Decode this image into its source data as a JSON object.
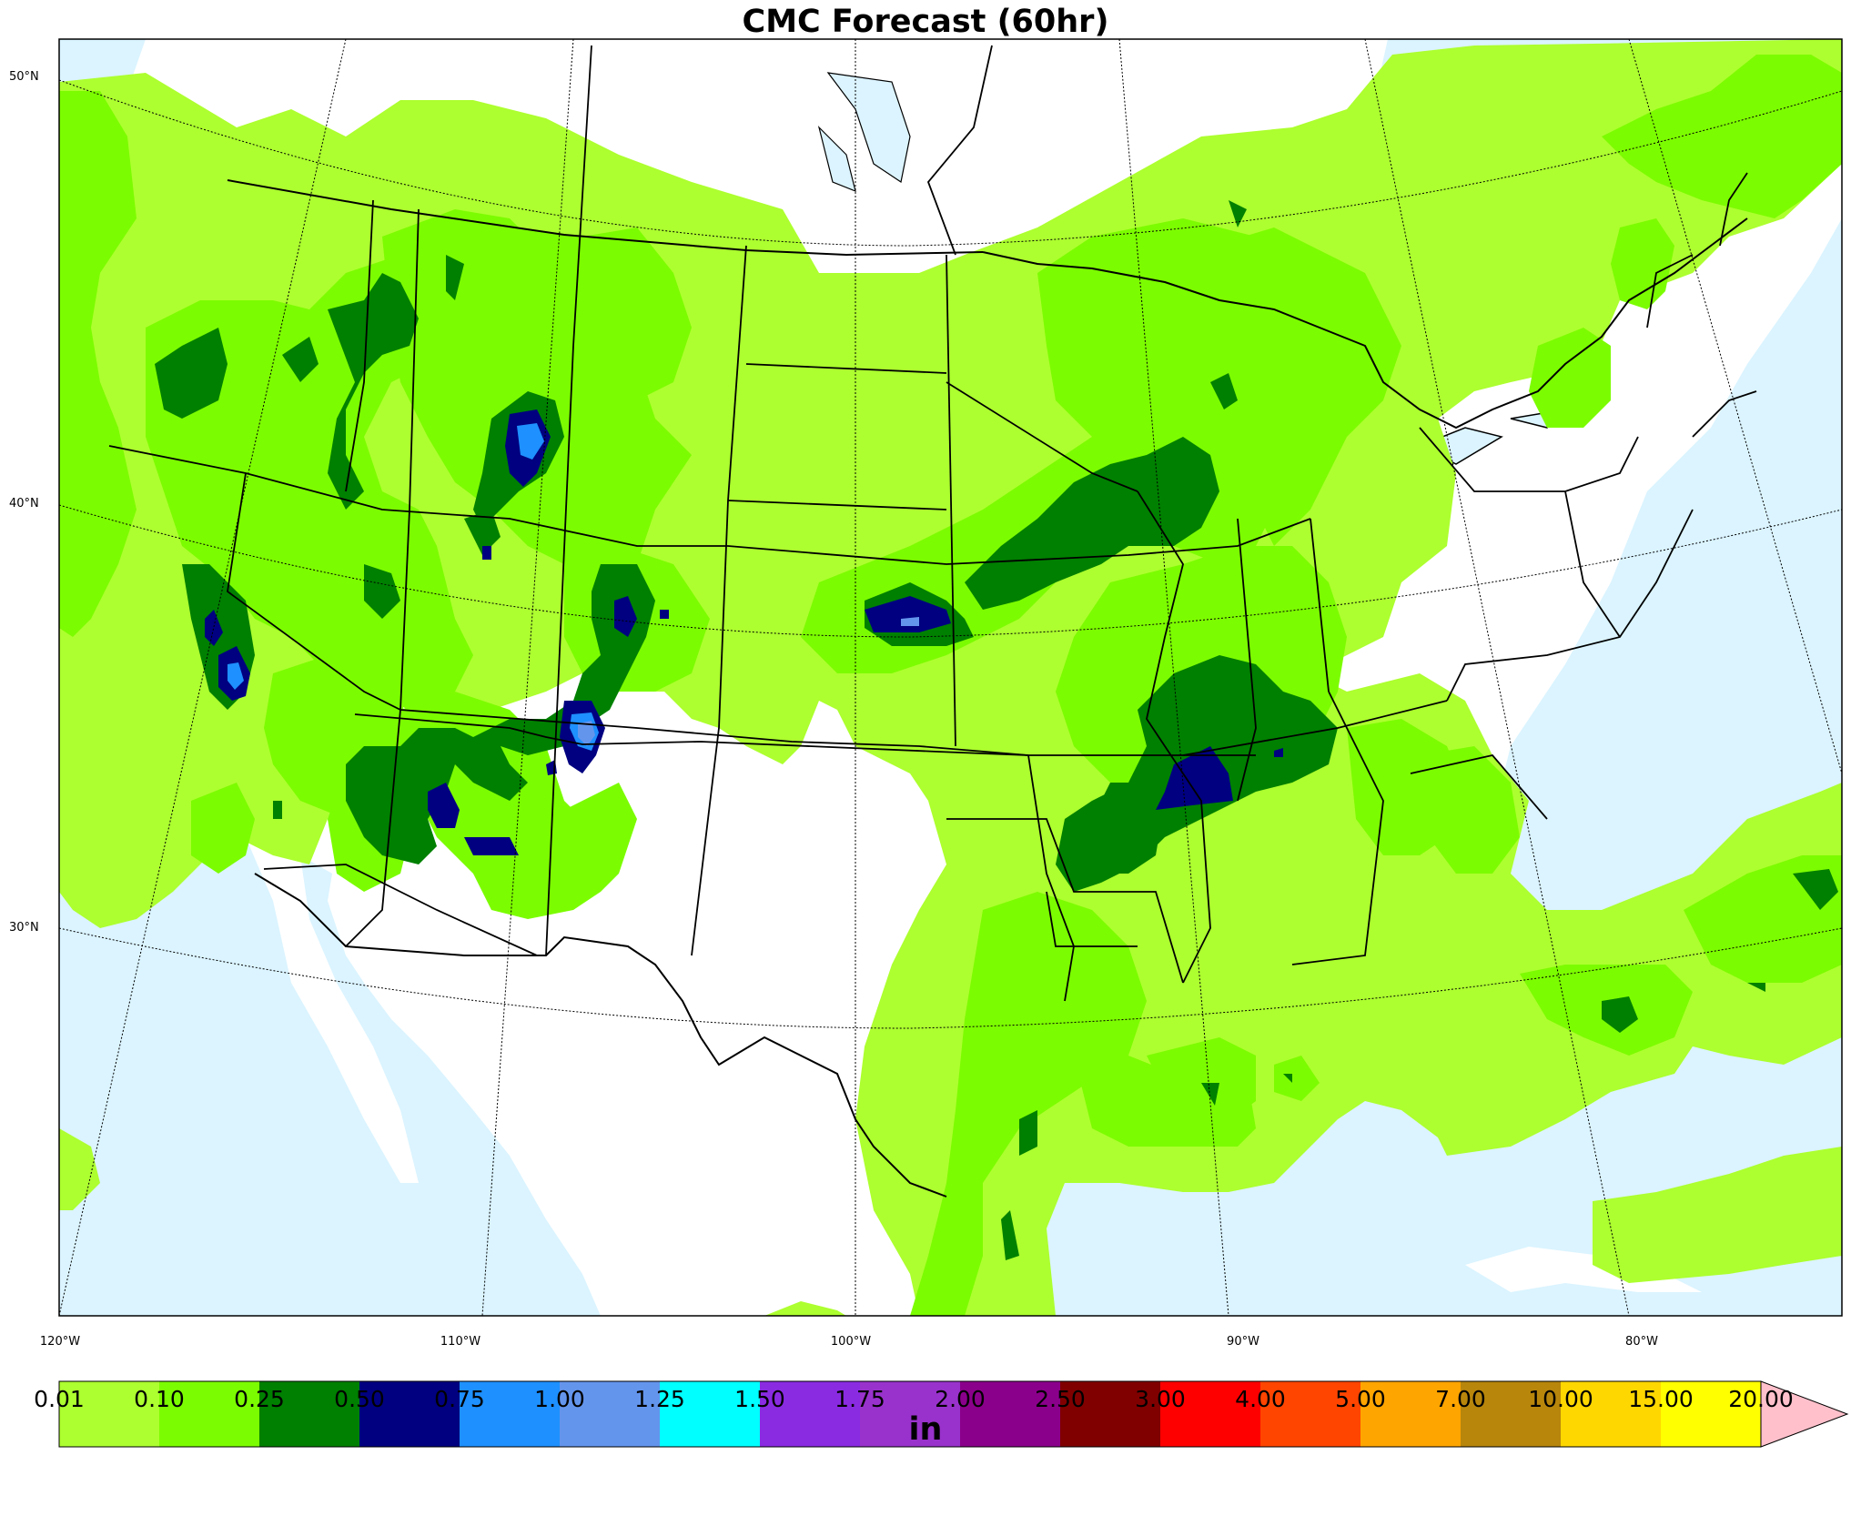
{
  "title": "CMC Forecast (60hr)",
  "lat_labels": [
    {
      "text": "50°N"
    },
    {
      "text": "40°N"
    },
    {
      "text": "30°N"
    }
  ],
  "lon_labels": [
    {
      "text": "120°W"
    },
    {
      "text": "110°W"
    },
    {
      "text": "100°W"
    },
    {
      "text": "90°W"
    },
    {
      "text": "80°W"
    }
  ],
  "colorbar": {
    "unit": "in",
    "ticks": [
      "0.01",
      "0.10",
      "0.25",
      "0.50",
      "0.75",
      "1.00",
      "1.25",
      "1.50",
      "1.75",
      "2.00",
      "2.50",
      "3.00",
      "4.00",
      "5.00",
      "7.00",
      "10.00",
      "15.00",
      "20.00"
    ],
    "colors": [
      "#adff2f",
      "#7cfc00",
      "#008000",
      "#000080",
      "#1e90ff",
      "#6495ed",
      "#00ffff",
      "#8a2be2",
      "#9932cc",
      "#8b008b",
      "#800000",
      "#ff0000",
      "#ff4500",
      "#ffa500",
      "#b8860b",
      "#ffd700",
      "#ffff00"
    ],
    "extend_color": "#ffc0cb"
  },
  "colors": {
    "water": "#dbf4ff",
    "land": "#ffffff"
  }
}
